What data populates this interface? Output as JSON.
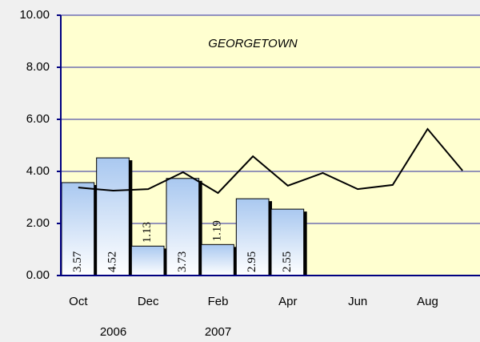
{
  "chart_data": {
    "type": "bar-line",
    "title": "GEORGETOWN",
    "categories": [
      "Oct",
      null,
      "Dec",
      null,
      "Feb",
      null,
      "Apr",
      null,
      "Jun",
      null,
      "Aug",
      null
    ],
    "series": [
      {
        "type": "bar",
        "color": "#a9c8f0",
        "values": [
          3.57,
          4.52,
          1.13,
          3.73,
          1.19,
          2.95,
          2.55,
          null,
          null,
          null,
          null,
          null
        ]
      },
      {
        "type": "line",
        "color": "#000000",
        "values": [
          3.38,
          3.26,
          3.32,
          3.97,
          3.17,
          4.58,
          3.45,
          3.94,
          3.32,
          3.48,
          5.63,
          4.03
        ]
      }
    ],
    "ylim": [
      0,
      10
    ],
    "yticks": [
      {
        "value": 0,
        "label": "0.00"
      },
      {
        "value": 2,
        "label": "2.00"
      },
      {
        "value": 4,
        "label": "4.00"
      },
      {
        "value": 6,
        "label": "6.00"
      },
      {
        "value": 8,
        "label": "8.00"
      },
      {
        "value": 10,
        "label": "10.00"
      }
    ],
    "grid": true,
    "annotations": [
      {
        "text": "2006",
        "category": 1
      },
      {
        "text": "2007",
        "category": 4
      }
    ]
  }
}
